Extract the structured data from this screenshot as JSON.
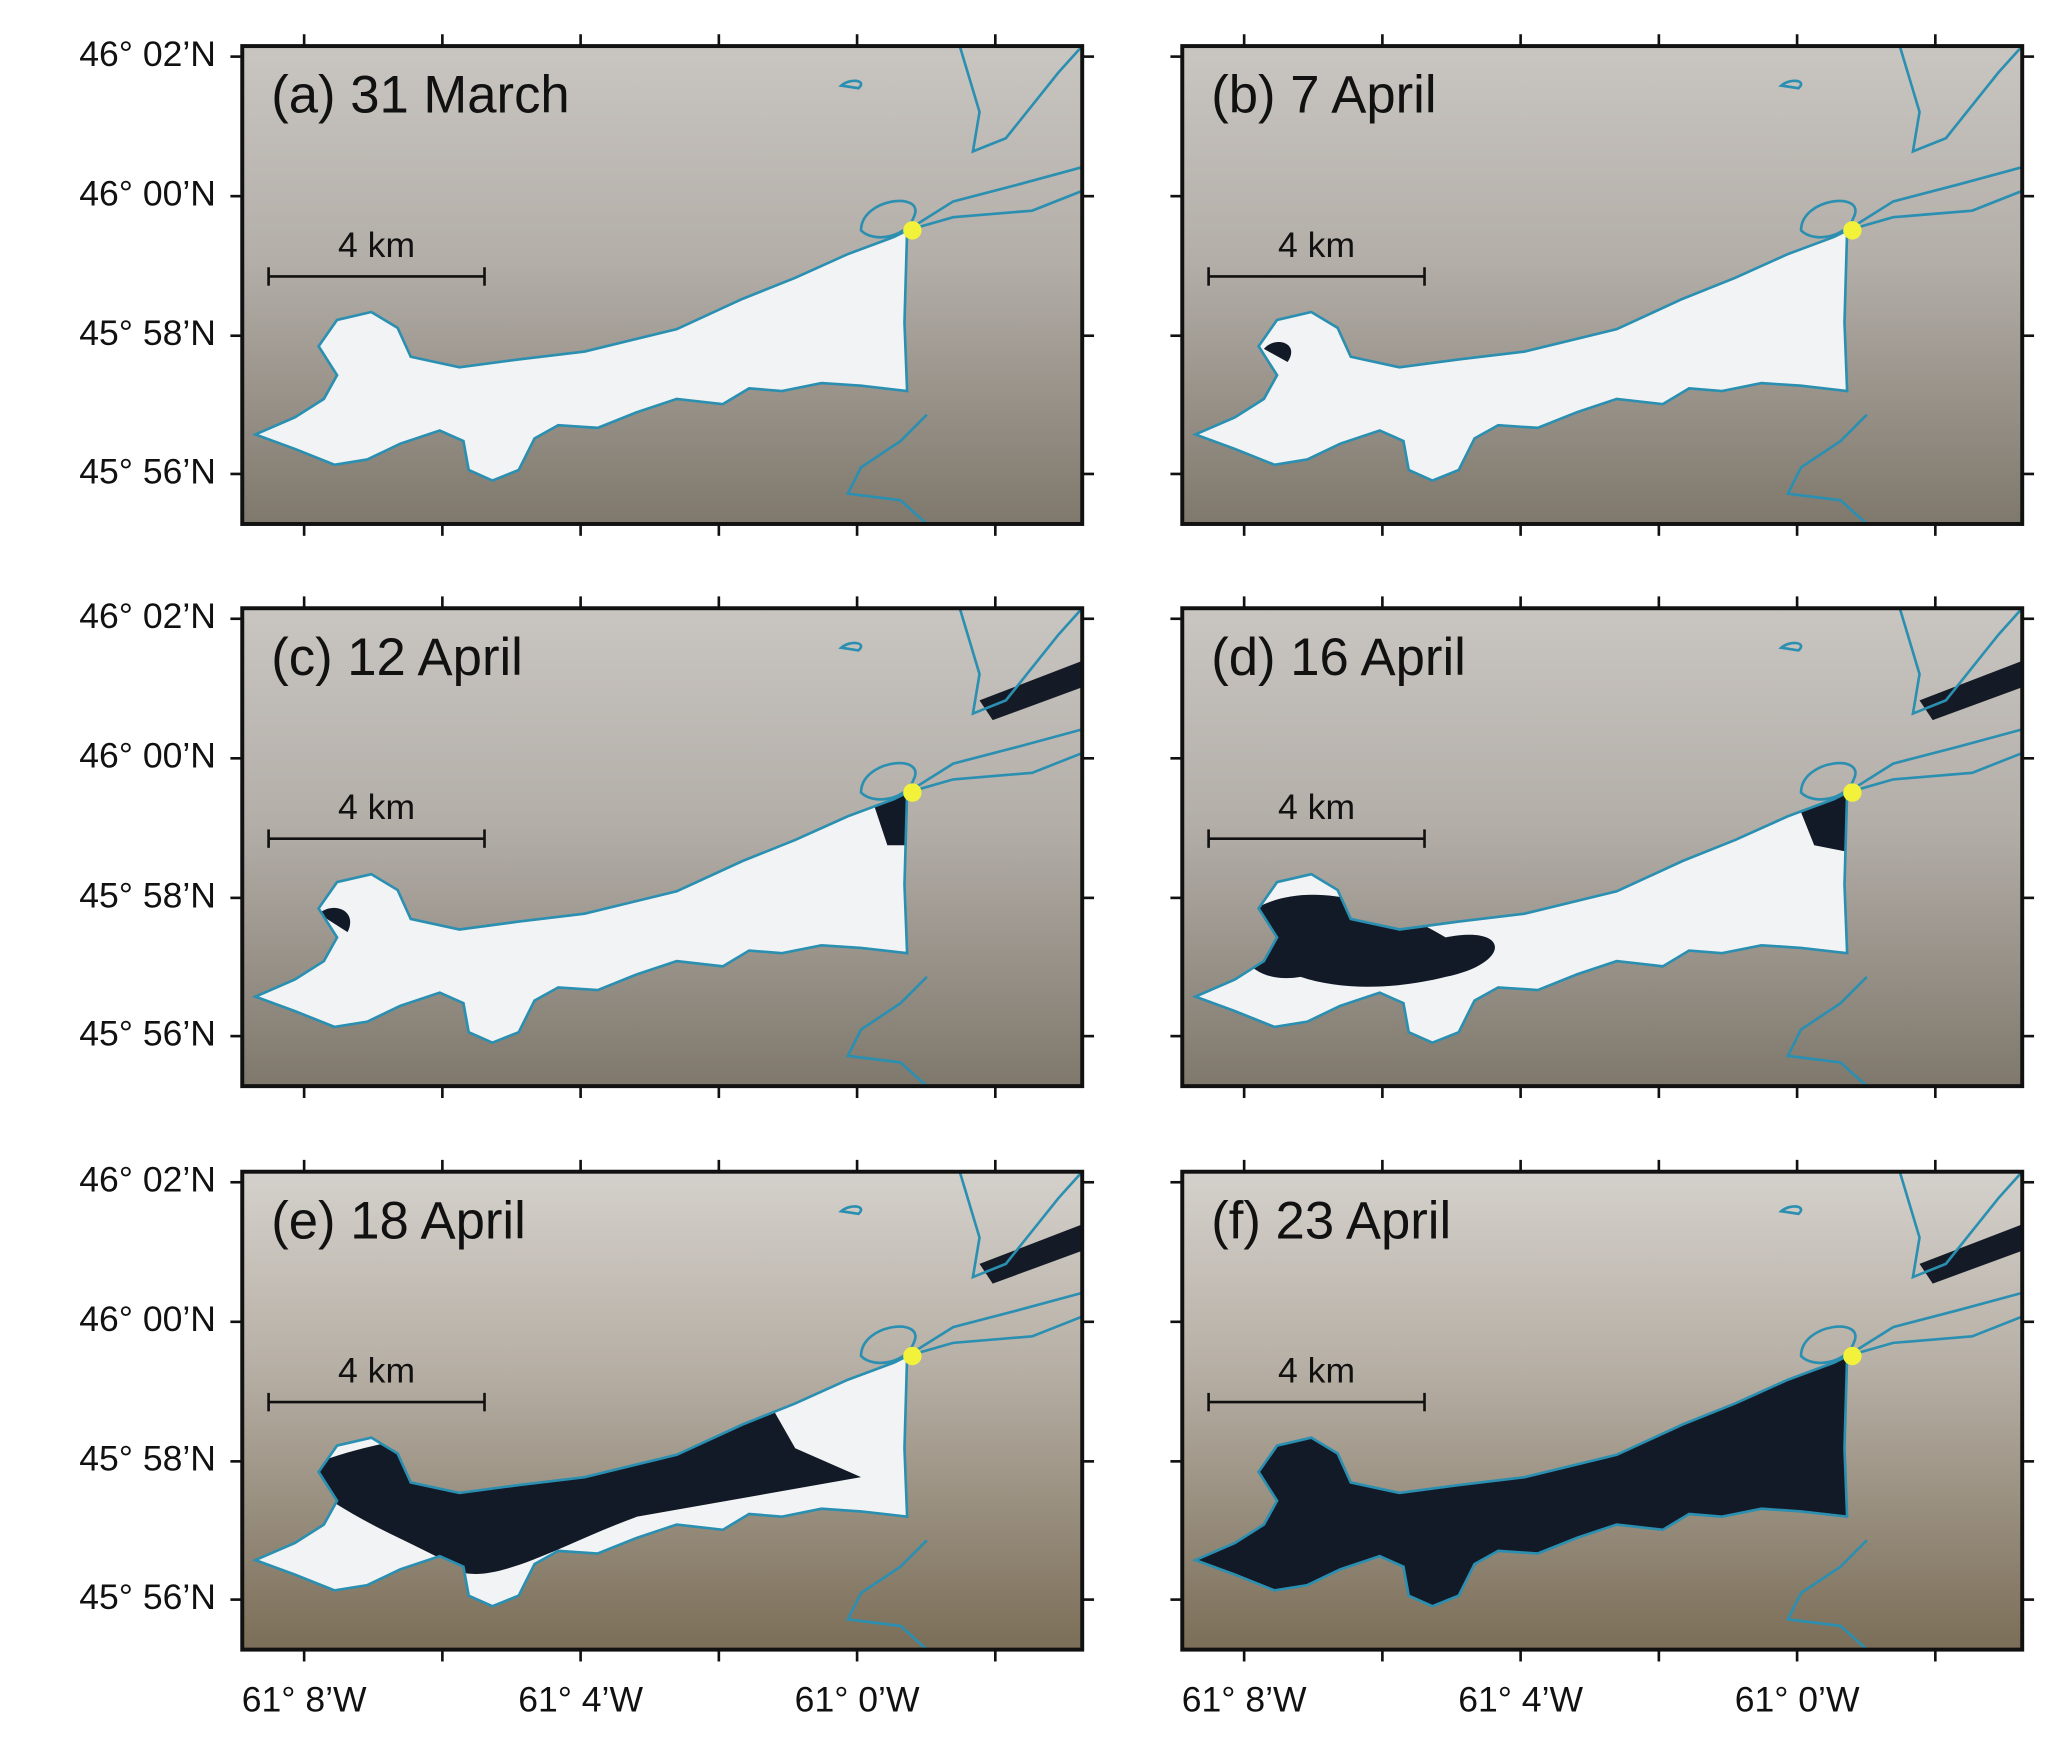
{
  "panels": [
    {
      "label": "(a) 31 March",
      "scale_label": "4 km"
    },
    {
      "label": "(b) 7 April",
      "scale_label": "4 km"
    },
    {
      "label": "(c) 12 April",
      "scale_label": "4 km"
    },
    {
      "label": "(d) 16 April",
      "scale_label": "4 km"
    },
    {
      "label": "(e) 18 April",
      "scale_label": "4 km"
    },
    {
      "label": "(f) 23 April",
      "scale_label": "4 km"
    }
  ],
  "lat_labels": [
    "46° 02’N",
    "46° 00’N",
    "45° 58’N",
    "45° 56’N"
  ],
  "lon_labels": [
    "61° 8’W",
    "61° 4’W",
    "61° 0’W"
  ]
}
